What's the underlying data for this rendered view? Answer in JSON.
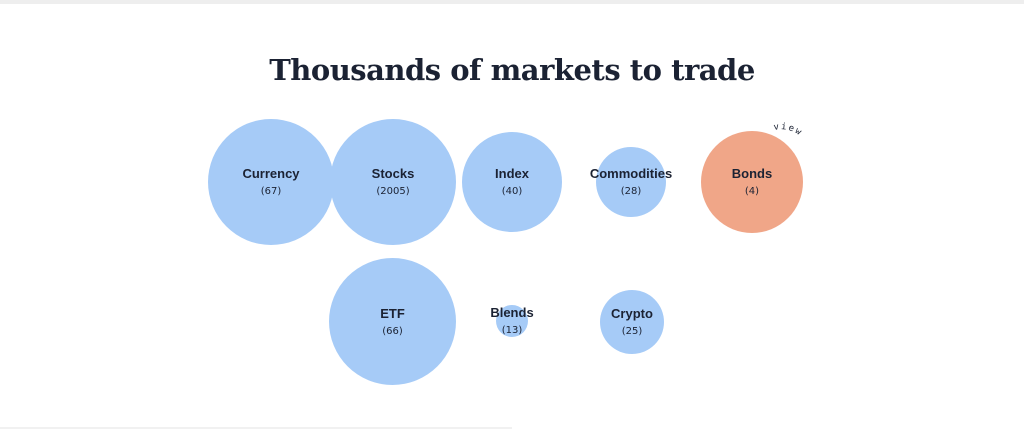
{
  "page": {
    "title": "Thousands of markets to trade"
  },
  "markets": [
    {
      "id": "currency",
      "name": "Currency",
      "count": "(67)",
      "color": "#a6cbf7"
    },
    {
      "id": "stocks",
      "name": "Stocks",
      "count": "(2005)",
      "color": "#a6cbf7"
    },
    {
      "id": "index",
      "name": "Index",
      "count": "(40)",
      "color": "#a6cbf7"
    },
    {
      "id": "commodities",
      "name": "Commodities",
      "count": "(28)",
      "color": "#a6cbf7"
    },
    {
      "id": "bonds",
      "name": "Bonds",
      "count": "(4)",
      "color": "#f0a688",
      "hover_label": "view"
    },
    {
      "id": "etf",
      "name": "ETF",
      "count": "(66)",
      "color": "#a6cbf7"
    },
    {
      "id": "blends",
      "name": "Blends",
      "count": "(13)",
      "color": "#a6cbf7"
    },
    {
      "id": "crypto",
      "name": "Crypto",
      "count": "(25)",
      "color": "#a6cbf7"
    }
  ],
  "colors": {
    "bubble_default": "#a6cbf7",
    "bubble_active": "#f0a688",
    "text": "#1b2233"
  }
}
